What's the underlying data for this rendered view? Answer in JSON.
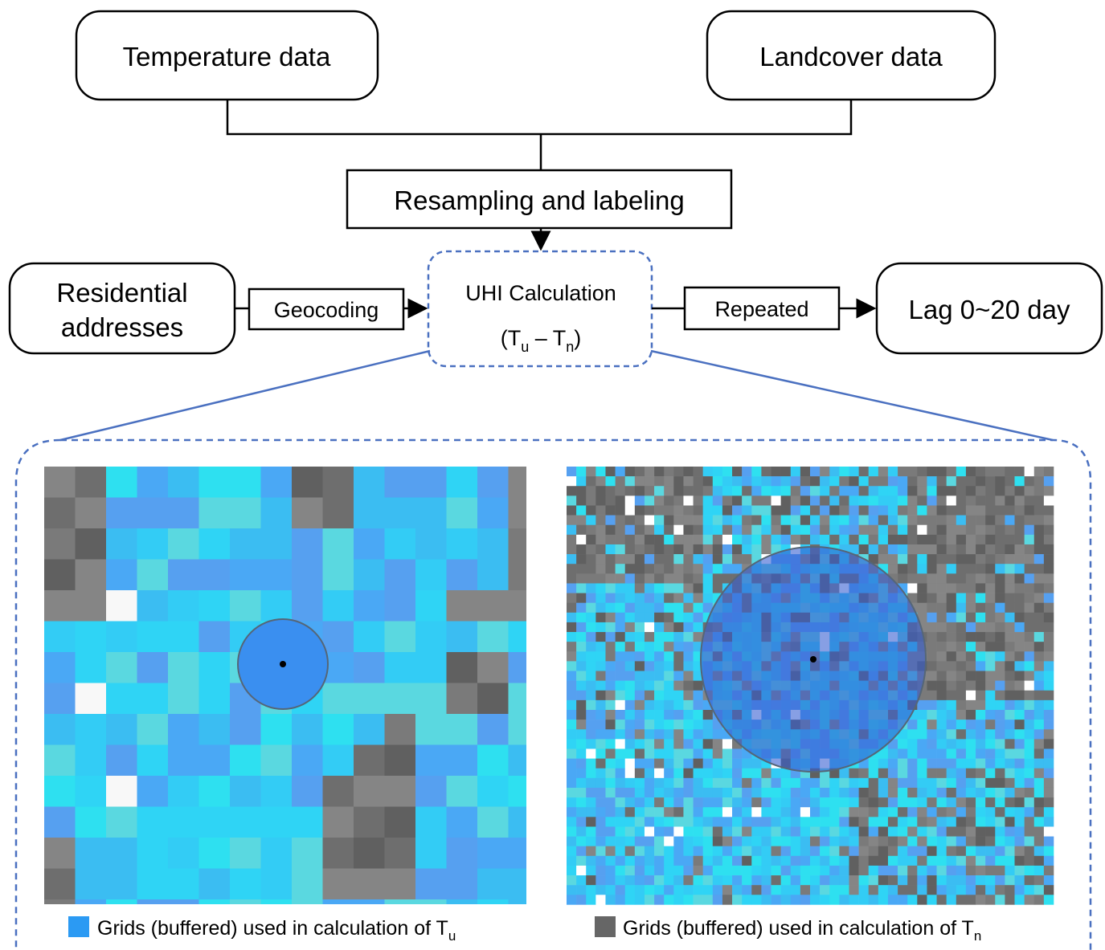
{
  "header": {
    "temperature": "Temperature data",
    "landcover": "Landcover data",
    "resampling": "Resampling and labeling"
  },
  "flow": {
    "residential": [
      "Residential",
      "addresses"
    ],
    "geocoding": "Geocoding",
    "uhi_title": "UHI Calculation",
    "uhi_formula": [
      "(T",
      "u",
      " – T",
      "n",
      ")"
    ],
    "repeated": "Repeated",
    "lag": "Lag 0~20 day"
  },
  "legend": {
    "left": [
      "Grids (buffered) used in calculation of T",
      "u"
    ],
    "right": [
      "Grids (buffered) used in calculation of T",
      "n"
    ]
  }
}
